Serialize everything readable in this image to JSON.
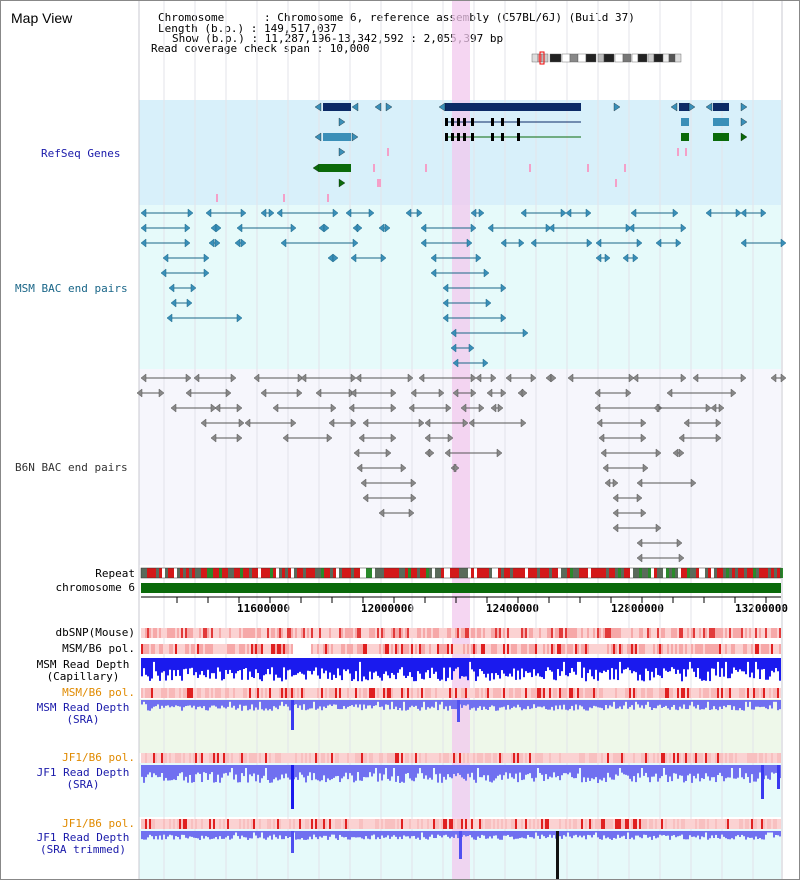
{
  "page": {
    "title": "Map View"
  },
  "header": {
    "chromosome_line": "Chromosome      : Chromosome 6, reference assembly (C57BL/6J) (Build 37)",
    "length_line": "Length (b.p.) : 149,517,037",
    "show_line": "Show (b.p.) : 11,287,196-13,342,592 : 2,055,397 bp",
    "coverage_line": "Read coverage check span : 10,000"
  },
  "tracks": {
    "refseq": {
      "label": "RefSeq Genes",
      "color": "#1a1aaa"
    },
    "msm_bac": {
      "label": "MSM BAC end pairs",
      "color": "#1a6688"
    },
    "b6n_bac": {
      "label": "B6N BAC end pairs",
      "color": "#333333"
    },
    "repeat": {
      "label": "Repeat"
    },
    "chrom": {
      "label": "chromosome 6"
    },
    "dbsnp": {
      "label": "dbSNP(Mouse)"
    },
    "msm_b6_pol_1": {
      "label": "MSM/B6 pol."
    },
    "msm_read_depth_cap": {
      "label": "MSM Read Depth\n(Capillary)"
    },
    "msm_b6_pol_2": {
      "label": "MSM/B6 pol.",
      "color": "#e08a00"
    },
    "msm_read_depth_sra": {
      "label": "MSM Read Depth\n(SRA)",
      "color": "#1a1aaa"
    },
    "jf1_b6_pol_1": {
      "label": "JF1/B6 pol.",
      "color": "#e08a00"
    },
    "jf1_read_depth_sra": {
      "label": "JF1 Read Depth\n(SRA)",
      "color": "#1a1aaa"
    },
    "jf1_b6_pol_2": {
      "label": "JF1/B6 pol.",
      "color": "#e08a00"
    },
    "jf1_read_depth_trim": {
      "label": "JF1 Read Depth\n(SRA trimmed)",
      "color": "#1a1aaa"
    }
  },
  "axis": {
    "ticks": [
      "11600000",
      "12000000",
      "12400000",
      "12800000",
      "13200000"
    ]
  },
  "colors": {
    "refseq_bg": "#d8f0fa",
    "bac_bg": "#e6fafa",
    "b6n_bg": "#f6f6fc",
    "highlight": "#f2c8ee",
    "chrom_green": "#0a6a0a",
    "depth_blue": "#1a1aee",
    "depth_light": "#7070f0"
  }
}
